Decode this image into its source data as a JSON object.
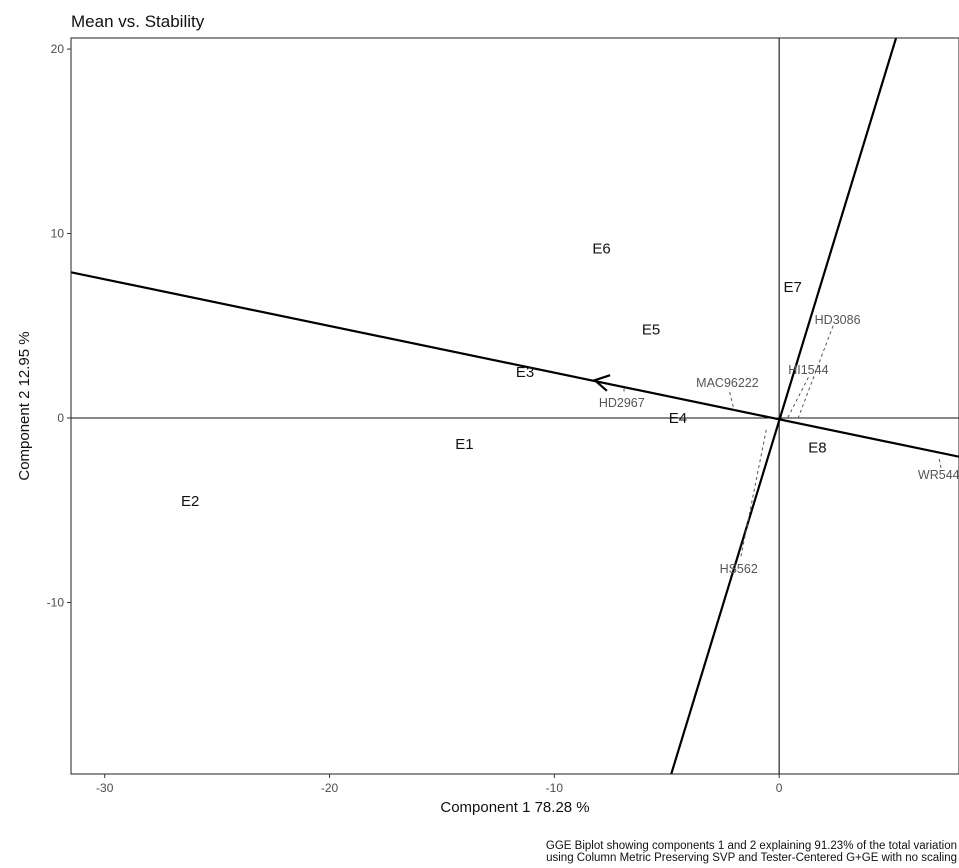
{
  "chart_data": {
    "type": "scatter",
    "title": "Mean vs. Stability",
    "xlabel": "Component 1 78.28 %",
    "ylabel": "Component 2 12.95 %",
    "xlim": [
      -31.5,
      8
    ],
    "ylim": [
      -19.3,
      20.6
    ],
    "xticks": [
      -30,
      -20,
      -10,
      0
    ],
    "yticks": [
      -10,
      0,
      10,
      20
    ],
    "tick_labels_x": [
      "-30",
      "-20",
      "-10",
      "0"
    ],
    "tick_labels_y": [
      "-10",
      "0",
      "10",
      "20"
    ],
    "grid": false,
    "environments": [
      {
        "name": "E1",
        "x": -14.0,
        "y": -1.4
      },
      {
        "name": "E2",
        "x": -26.2,
        "y": -4.5
      },
      {
        "name": "E3",
        "x": -11.3,
        "y": 2.5
      },
      {
        "name": "E4",
        "x": -4.5,
        "y": 0.0
      },
      {
        "name": "E5",
        "x": -5.7,
        "y": 4.8
      },
      {
        "name": "E6",
        "x": -7.9,
        "y": 9.2
      },
      {
        "name": "E7",
        "x": 0.6,
        "y": 7.1
      },
      {
        "name": "E8",
        "x": 1.7,
        "y": -1.6
      }
    ],
    "genotypes": [
      {
        "name": "HD3086",
        "x": 2.6,
        "y": 5.3
      },
      {
        "name": "HI1544",
        "x": 1.3,
        "y": 2.6
      },
      {
        "name": "MAC96222",
        "x": -2.3,
        "y": 1.9
      },
      {
        "name": "HD2967",
        "x": -7.0,
        "y": 0.8
      },
      {
        "name": "WR544",
        "x": 7.1,
        "y": -3.1
      },
      {
        "name": "HS562",
        "x": -1.8,
        "y": -8.2
      }
    ],
    "projections": [
      {
        "genotype": "HD3086",
        "x": 2.4,
        "y": 5.0,
        "foot_x": 0.8,
        "foot_y": -0.15
      },
      {
        "genotype": "HI1544",
        "x": 1.3,
        "y": 2.2,
        "foot_x": 0.35,
        "foot_y": -0.06
      },
      {
        "genotype": "MAC96222",
        "x": -2.2,
        "y": 1.4,
        "foot_x": -2.0,
        "foot_y": 0.4
      },
      {
        "genotype": "HD2967",
        "x": -6.9,
        "y": 1.6,
        "foot_x": -6.9,
        "foot_y": 1.4
      },
      {
        "genotype": "WR544",
        "x": 7.2,
        "y": -2.7,
        "foot_x": 7.1,
        "foot_y": -2.1
      },
      {
        "genotype": "HS562",
        "x": -1.7,
        "y": -7.5,
        "foot_x": -0.55,
        "foot_y": -0.5
      }
    ],
    "aec_abscissa": {
      "x1": -31.5,
      "y1": 7.9,
      "x2": 8.0,
      "y2": -2.1
    },
    "aec_ordinate": {
      "x1": -4.8,
      "y1": -19.3,
      "x2": 5.2,
      "y2": 20.6
    },
    "arrow": {
      "x": -8.2,
      "y": 2.05
    },
    "caption": [
      "GGE Biplot showing components 1 and 2 explaining 91.23% of the total variation",
      "using Column Metric Preserving SVP and Tester-Centered G+GE with no scaling"
    ]
  }
}
